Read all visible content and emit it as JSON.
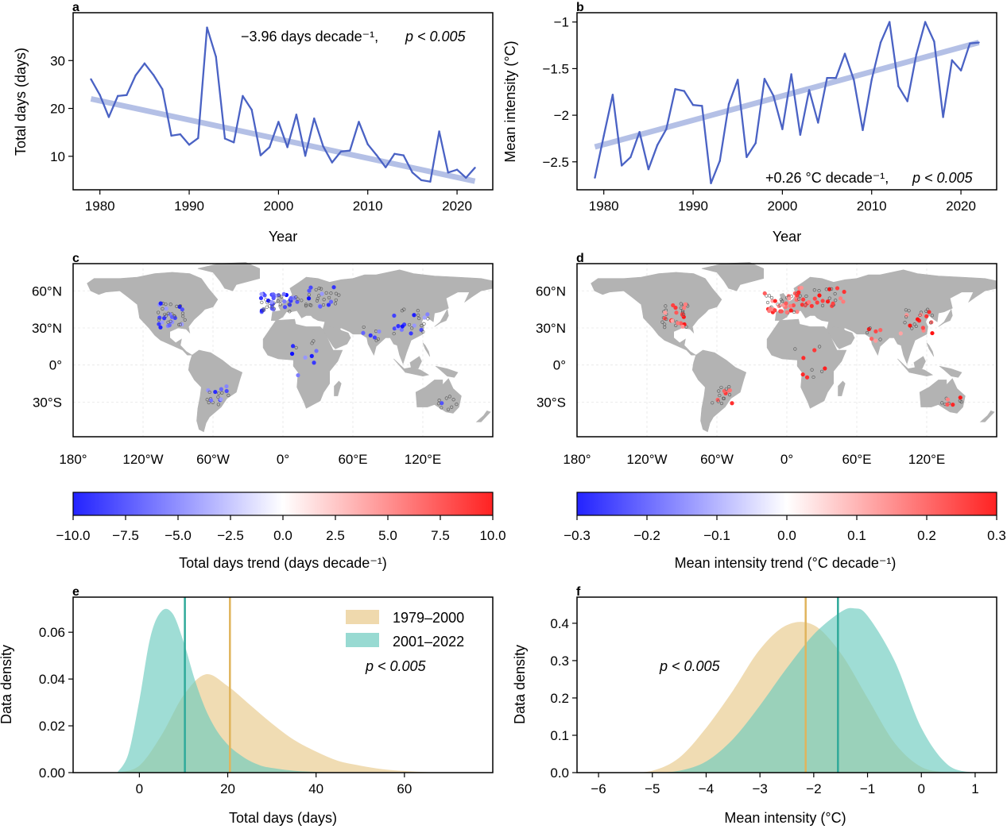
{
  "chart_data": [
    {
      "panel": "a",
      "type": "line",
      "xlabel": "Year",
      "ylabel": "Total days (days)",
      "xlim": [
        1977,
        2024
      ],
      "ylim": [
        3,
        40
      ],
      "xticks": [
        1980,
        1990,
        2000,
        2010,
        2020
      ],
      "yticks": [
        10,
        20,
        30
      ],
      "annotation": "−3.96 days decade⁻¹,",
      "pvalue": "p < 0.005",
      "color": "#4a62c4",
      "trend_color": "#a8b6e2",
      "x": [
        1979,
        1980,
        1981,
        1982,
        1983,
        1984,
        1985,
        1986,
        1987,
        1988,
        1989,
        1990,
        1991,
        1992,
        1993,
        1994,
        1995,
        1996,
        1997,
        1998,
        1999,
        2000,
        2001,
        2002,
        2003,
        2004,
        2005,
        2006,
        2007,
        2008,
        2009,
        2010,
        2011,
        2012,
        2013,
        2014,
        2015,
        2016,
        2017,
        2018,
        2019,
        2020,
        2021,
        2022
      ],
      "series": [
        {
          "values": [
            26.1,
            22.8,
            18.2,
            22.6,
            22.8,
            26.9,
            29.4,
            27.0,
            24.0,
            14.3,
            14.6,
            12.4,
            13.8,
            36.9,
            30.8,
            13.7,
            12.9,
            22.6,
            19.7,
            10.2,
            11.9,
            17.2,
            11.9,
            18.7,
            10.1,
            17.9,
            12.1,
            8.7,
            11.0,
            11.2,
            17.2,
            12.5,
            10.2,
            7.7,
            10.5,
            10.2,
            6.6,
            5.0,
            4.7,
            15.2,
            6.6,
            7.2,
            5.5,
            7.6
          ]
        }
      ],
      "trend": {
        "x": [
          1979,
          2022
        ],
        "y": [
          22.0,
          4.8
        ]
      }
    },
    {
      "panel": "b",
      "type": "line",
      "xlabel": "Year",
      "ylabel": "Mean intensity (°C)",
      "xlim": [
        1977,
        2024
      ],
      "ylim": [
        -2.8,
        -0.9
      ],
      "xticks": [
        1980,
        1990,
        2000,
        2010,
        2020
      ],
      "yticks": [
        -2.5,
        -2.0,
        -1.5,
        -1.0
      ],
      "annotation": "+0.26 °C decade⁻¹,",
      "pvalue": "p < 0.005",
      "color": "#4a62c4",
      "trend_color": "#a8b6e2",
      "x": [
        1979,
        1980,
        1981,
        1982,
        1983,
        1984,
        1985,
        1986,
        1987,
        1988,
        1989,
        1990,
        1991,
        1992,
        1993,
        1994,
        1995,
        1996,
        1997,
        1998,
        1999,
        2000,
        2001,
        2002,
        2003,
        2004,
        2005,
        2006,
        2007,
        2008,
        2009,
        2010,
        2011,
        2012,
        2013,
        2014,
        2015,
        2016,
        2017,
        2018,
        2019,
        2020,
        2021,
        2022
      ],
      "series": [
        {
          "values": [
            -2.67,
            -2.22,
            -1.78,
            -2.54,
            -2.45,
            -2.18,
            -2.58,
            -2.32,
            -2.15,
            -1.72,
            -1.74,
            -1.89,
            -1.9,
            -2.73,
            -2.49,
            -1.88,
            -1.62,
            -2.45,
            -2.3,
            -1.61,
            -1.79,
            -2.15,
            -1.56,
            -2.21,
            -1.73,
            -2.08,
            -1.6,
            -1.6,
            -1.34,
            -1.62,
            -2.16,
            -1.62,
            -1.22,
            -1.0,
            -1.69,
            -1.85,
            -1.35,
            -1.0,
            -1.21,
            -2.02,
            -1.41,
            -1.52,
            -1.23,
            -1.22
          ]
        }
      ],
      "trend": {
        "x": [
          1979,
          2022
        ],
        "y": [
          -2.34,
          -1.22
        ]
      }
    },
    {
      "panel": "c",
      "type": "scatter",
      "map": true,
      "xticks_labels": [
        "180°",
        "120°W",
        "60°W",
        "0°",
        "60°E",
        "120°E"
      ],
      "xticks": [
        -180,
        -120,
        -60,
        0,
        60,
        120
      ],
      "yticks_labels": [
        "60°N",
        "30°N",
        "0°",
        "30°S"
      ],
      "yticks": [
        60,
        30,
        0,
        -30
      ],
      "colorbar": {
        "label": "Total days trend (days decade⁻¹)",
        "range": [
          -10,
          10
        ],
        "ticks": [
          "−10.0",
          "−7.5",
          "−5.0",
          "−2.5",
          "0.0",
          "2.5",
          "5.0",
          "7.5",
          "10.0"
        ]
      }
    },
    {
      "panel": "d",
      "type": "scatter",
      "map": true,
      "xticks_labels": [
        "180°",
        "120°W",
        "60°W",
        "0°",
        "60°E",
        "120°E"
      ],
      "xticks": [
        -180,
        -120,
        -60,
        0,
        60,
        120
      ],
      "yticks_labels": [
        "60°N",
        "30°N",
        "0°",
        "30°S"
      ],
      "yticks": [
        60,
        30,
        0,
        -30
      ],
      "colorbar": {
        "label": "Mean intensity trend (°C decade⁻¹)",
        "range": [
          -0.3,
          0.3
        ],
        "ticks": [
          "−0.3",
          "−0.2",
          "−0.1",
          "0.0",
          "0.1",
          "0.2",
          "0.3"
        ]
      }
    },
    {
      "panel": "e",
      "type": "area",
      "xlabel": "Total days (days)",
      "ylabel": "Data density",
      "xlim": [
        -15,
        80
      ],
      "ylim": [
        0,
        0.075
      ],
      "xticks": [
        0,
        20,
        40,
        60
      ],
      "yticks": [
        "0.00",
        "0.02",
        "0.04",
        "0.06"
      ],
      "legend_position": "top-right",
      "pvalue": "p < 0.005",
      "series": [
        {
          "name": "1979–2000",
          "color": "#e8c98a",
          "mean": 20.5,
          "x": [
            -5,
            0,
            5,
            10,
            15,
            20,
            25,
            30,
            35,
            40,
            45,
            50,
            55,
            60,
            65,
            70
          ],
          "values": [
            0.0,
            0.003,
            0.016,
            0.033,
            0.042,
            0.037,
            0.029,
            0.021,
            0.014,
            0.009,
            0.005,
            0.003,
            0.0015,
            0.0007,
            0.0002,
            0.0
          ]
        },
        {
          "name": "2001–2022",
          "color": "#6ccbbf",
          "mean": 10.3,
          "x": [
            -5,
            -2.5,
            0,
            2.5,
            5,
            7.5,
            10,
            12.5,
            15,
            17.5,
            20,
            22.5,
            25,
            27.5,
            30,
            35,
            40,
            45
          ],
          "values": [
            0.0,
            0.008,
            0.031,
            0.058,
            0.069,
            0.068,
            0.056,
            0.04,
            0.027,
            0.018,
            0.012,
            0.008,
            0.005,
            0.003,
            0.002,
            0.0008,
            0.0003,
            0.0
          ]
        }
      ]
    },
    {
      "panel": "f",
      "type": "area",
      "xlabel": "Mean intensity (°C)",
      "ylabel": "Data density",
      "xlim": [
        -6.4,
        1.4
      ],
      "ylim": [
        0,
        0.47
      ],
      "xticks": [
        -6,
        -5,
        -4,
        -3,
        -2,
        -1,
        0,
        1
      ],
      "yticks": [
        "0.0",
        "0.1",
        "0.2",
        "0.3",
        "0.4"
      ],
      "pvalue": "p < 0.005",
      "series": [
        {
          "name": "1979–2000",
          "color": "#e8c98a",
          "mean": -2.15,
          "x": [
            -5.5,
            -5.0,
            -4.5,
            -4.0,
            -3.5,
            -3.0,
            -2.5,
            -2.0,
            -1.5,
            -1.0,
            -0.5,
            0.0,
            0.5
          ],
          "values": [
            0.0,
            0.005,
            0.04,
            0.12,
            0.22,
            0.33,
            0.395,
            0.395,
            0.32,
            0.2,
            0.08,
            0.015,
            0.0
          ]
        },
        {
          "name": "2001–2022",
          "color": "#6ccbbf",
          "mean": -1.55,
          "x": [
            -5.0,
            -4.5,
            -4.0,
            -3.5,
            -3.0,
            -2.5,
            -2.0,
            -1.5,
            -1.25,
            -1.0,
            -0.5,
            0.0,
            0.5,
            1.0
          ],
          "values": [
            0.0,
            0.005,
            0.03,
            0.09,
            0.18,
            0.28,
            0.37,
            0.43,
            0.44,
            0.42,
            0.3,
            0.12,
            0.02,
            0.0
          ]
        }
      ]
    }
  ]
}
